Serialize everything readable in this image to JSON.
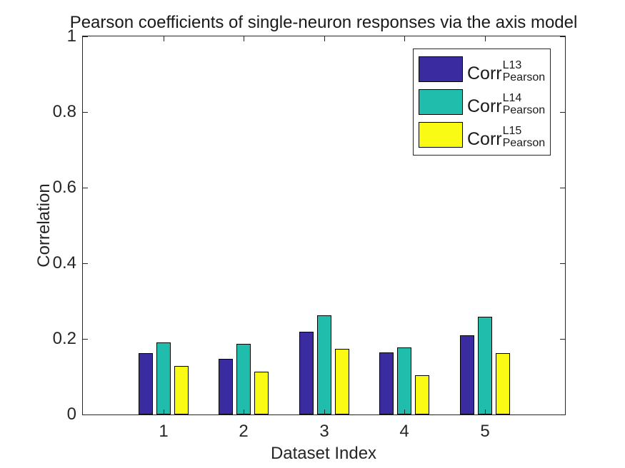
{
  "chart_data": {
    "type": "bar",
    "title": "Pearson coefficients of single-neuron responses via the axis model",
    "xlabel": "Dataset Index",
    "ylabel": "Correlation",
    "categories": [
      1,
      2,
      3,
      4,
      5
    ],
    "xtick_labels": [
      "1",
      "2",
      "3",
      "4",
      "5"
    ],
    "yticks": [
      0,
      0.2,
      0.4,
      0.6,
      0.8,
      1
    ],
    "ytick_labels": [
      "0",
      "0.2",
      "0.4",
      "0.6",
      "0.8",
      "1"
    ],
    "xlim": [
      0,
      6
    ],
    "ylim": [
      0,
      1
    ],
    "grid": false,
    "legend_position": "top-right",
    "bar_edge_color": "#000000",
    "axis_color": "#262626",
    "series": [
      {
        "name": "Corr_Pearson_L13",
        "legend_base": "Corr",
        "legend_sup": "L13",
        "legend_sub": "Pearson",
        "color": "#3B2BA0",
        "values": [
          0.162,
          0.147,
          0.218,
          0.165,
          0.209
        ]
      },
      {
        "name": "Corr_Pearson_L14",
        "legend_base": "Corr",
        "legend_sup": "L14",
        "legend_sub": "Pearson",
        "color": "#20BDAC",
        "values": [
          0.19,
          0.187,
          0.263,
          0.177,
          0.259
        ]
      },
      {
        "name": "Corr_Pearson_L15",
        "legend_base": "Corr",
        "legend_sup": "L15",
        "legend_sub": "Pearson",
        "color": "#F9FB14",
        "values": [
          0.128,
          0.114,
          0.173,
          0.103,
          0.162
        ]
      }
    ]
  }
}
